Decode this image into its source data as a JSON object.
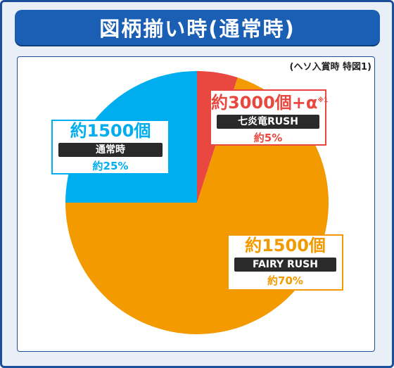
{
  "title": "図柄揃い時(通常時)",
  "note": "(ヘソ入賞時 特図1)",
  "labels": {
    "rush": {
      "amount": "約3000個+α",
      "mark": "※1",
      "mode": "七炎竜RUSH",
      "pct": "約5%"
    },
    "normal": {
      "amount": "約1500個",
      "mode": "通常時",
      "pct": "約25%"
    },
    "fairy": {
      "amount": "約1500個",
      "mode": "FAIRY RUSH",
      "pct": "約70%"
    }
  },
  "colors": {
    "frame": "#1b4f9b",
    "title_bg": "#1a5fb4",
    "rush": "#e8483f",
    "fairy": "#f29a00",
    "normal": "#00aeef"
  },
  "chart_data": {
    "type": "pie",
    "title": "図柄揃い時(通常時)",
    "slices": [
      {
        "name": "七炎竜RUSH",
        "value": 5,
        "color": "#e8483f"
      },
      {
        "name": "FAIRY RUSH",
        "value": 70,
        "color": "#f29a00"
      },
      {
        "name": "通常時",
        "value": 25,
        "color": "#00aeef"
      }
    ]
  }
}
